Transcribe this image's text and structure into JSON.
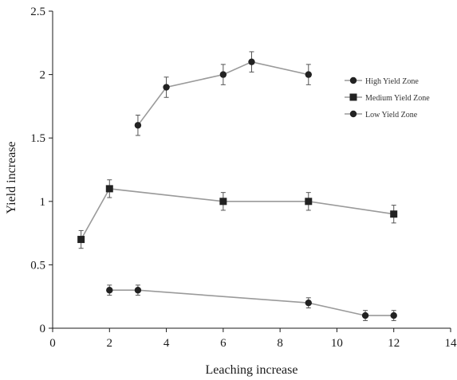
{
  "chart_data": {
    "type": "line",
    "xlabel": "Leaching increase",
    "ylabel": "Yield increase",
    "xlim": [
      0,
      14
    ],
    "ylim": [
      0,
      2.5
    ],
    "xticks": [
      0,
      2,
      4,
      6,
      8,
      10,
      12,
      14
    ],
    "xtick_labels": [
      "0",
      "2",
      "4",
      "6",
      "8",
      "10",
      "12",
      "14"
    ],
    "yticks": [
      0,
      0.5,
      1,
      1.5,
      2,
      2.5
    ],
    "ytick_labels": [
      "0",
      "0.5",
      "1",
      "1.5",
      "2",
      "2.5"
    ],
    "grid": false,
    "legend_position": "top-right",
    "series": [
      {
        "name": "High Yield Zone",
        "marker": "circle",
        "color": "#222222",
        "x": [
          3,
          4,
          6,
          7,
          9
        ],
        "y": [
          1.6,
          1.9,
          2.0,
          2.1,
          2.0
        ],
        "error": [
          0.08,
          0.08,
          0.08,
          0.08,
          0.08
        ]
      },
      {
        "name": "Medium Yield Zone",
        "marker": "square",
        "color": "#222222",
        "x": [
          1,
          2,
          6,
          9,
          12
        ],
        "y": [
          0.7,
          1.1,
          1.0,
          1.0,
          0.9
        ],
        "error": [
          0.07,
          0.07,
          0.07,
          0.07,
          0.07
        ]
      },
      {
        "name": "Low Yield Zone",
        "marker": "circle",
        "color": "#222222",
        "x": [
          2,
          3,
          9,
          11,
          12
        ],
        "y": [
          0.3,
          0.3,
          0.2,
          0.1,
          0.1
        ],
        "error": [
          0.04,
          0.04,
          0.04,
          0.04,
          0.04
        ]
      }
    ]
  }
}
